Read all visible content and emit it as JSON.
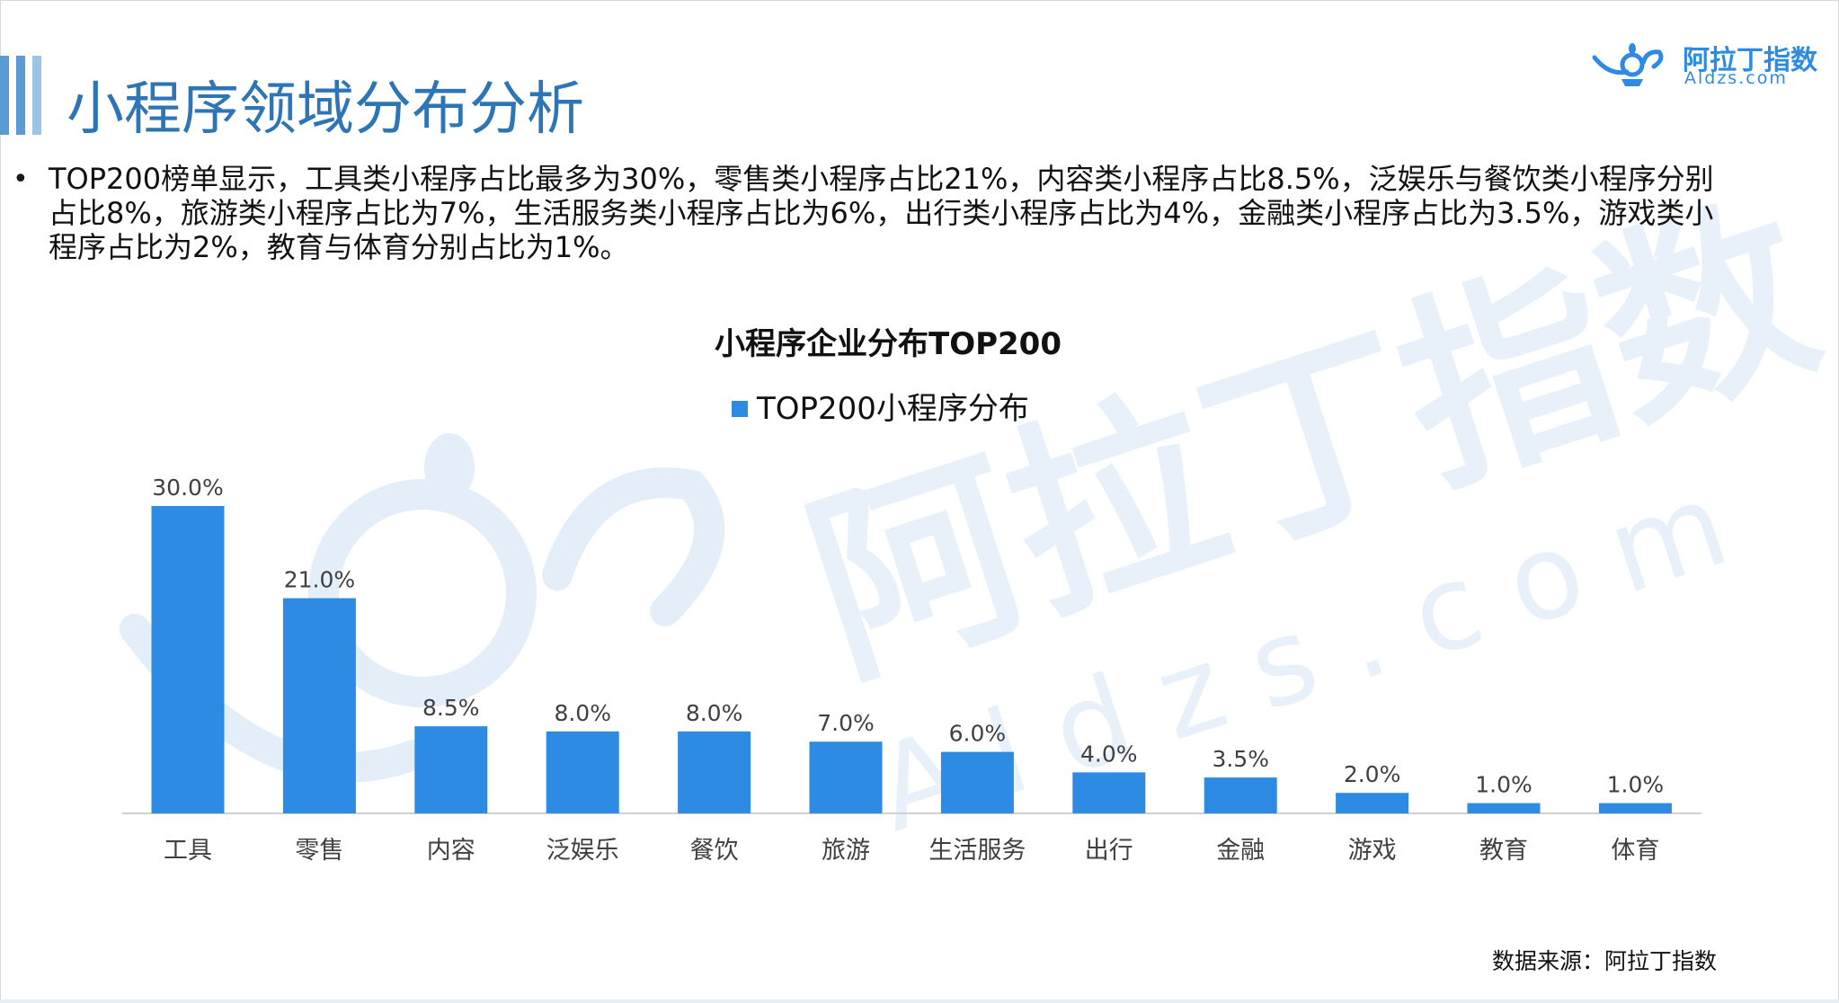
{
  "header": {
    "title": "小程序领域分布分析",
    "logo_name": "阿拉丁指数",
    "logo_url": "Aldzs.com",
    "accent": "#2e75b6"
  },
  "bullet": {
    "text": "TOP200榜单显示，工具类小程序占比最多为30%，零售类小程序占比21%，内容类小程序占比8.5%，泛娱乐与餐饮类小程序分别占比8%，旅游类小程序占比为7%，生活服务类小程序占比为6%，出行类小程序占比为4%，金融类小程序占比为3.5%，游戏类小程序占比为2%，教育与体育分别占比为1%。"
  },
  "watermark": {
    "name": "阿拉丁指数",
    "url": "Aldzs.com"
  },
  "chart_data": {
    "type": "bar",
    "title": "小程序企业分布TOP200",
    "legend": "top-center",
    "categories": [
      "工具",
      "零售",
      "内容",
      "泛娱乐",
      "餐饮",
      "旅游",
      "生活服务",
      "出行",
      "金融",
      "游戏",
      "教育",
      "体育"
    ],
    "series": [
      {
        "name": "TOP200小程序分布",
        "values": [
          30.0,
          21.0,
          8.5,
          8.0,
          8.0,
          7.0,
          6.0,
          4.0,
          3.5,
          2.0,
          1.0,
          1.0
        ],
        "labels": [
          "30.0%",
          "21.0%",
          "8.5%",
          "8.0%",
          "8.0%",
          "7.0%",
          "6.0%",
          "4.0%",
          "3.5%",
          "2.0%",
          "1.0%",
          "1.0%"
        ],
        "color": "#2e8be3"
      }
    ],
    "xlabel": "",
    "ylabel": "",
    "ylim": [
      0,
      30
    ],
    "grid": false
  },
  "source": "数据来源：阿拉丁指数"
}
